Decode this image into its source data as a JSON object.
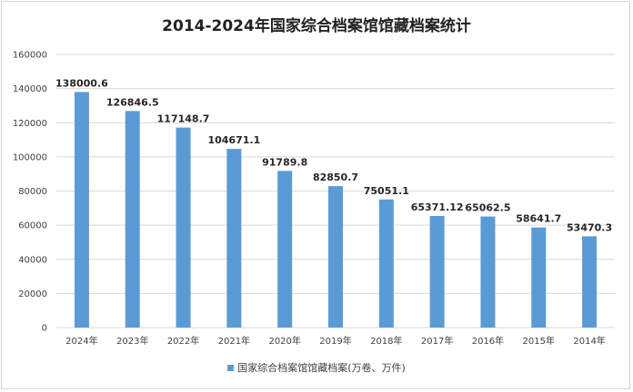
{
  "chart_data": {
    "type": "bar",
    "title": "2014-2024年国家综合档案馆馆藏档案统计",
    "categories": [
      "2024年",
      "2023年",
      "2022年",
      "2021年",
      "2020年",
      "2019年",
      "2018年",
      "2017年",
      "2016年",
      "2015年",
      "2014年"
    ],
    "series": [
      {
        "name": "国家综合档案馆馆藏档案(万卷、万件)",
        "values": [
          138000.6,
          126846.5,
          117148.7,
          104671.1,
          91789.8,
          82850.7,
          75051.1,
          65371.12,
          65062.5,
          58641.7,
          53470.3
        ],
        "value_labels": [
          "138000.6",
          "126846.5",
          "117148.7",
          "104671.1",
          "91789.8",
          "82850.7",
          "75051.1",
          "65371.12",
          "65062.5",
          "58641.7",
          "53470.3"
        ]
      }
    ],
    "xlabel": "",
    "ylabel": "",
    "ylim": [
      0,
      160000
    ],
    "yticks": [
      0,
      20000,
      40000,
      60000,
      80000,
      100000,
      120000,
      140000,
      160000
    ],
    "grid": true,
    "legend": "bottom",
    "bar_color": "#5b9bd5",
    "grid_color": "#d9d9d9"
  }
}
